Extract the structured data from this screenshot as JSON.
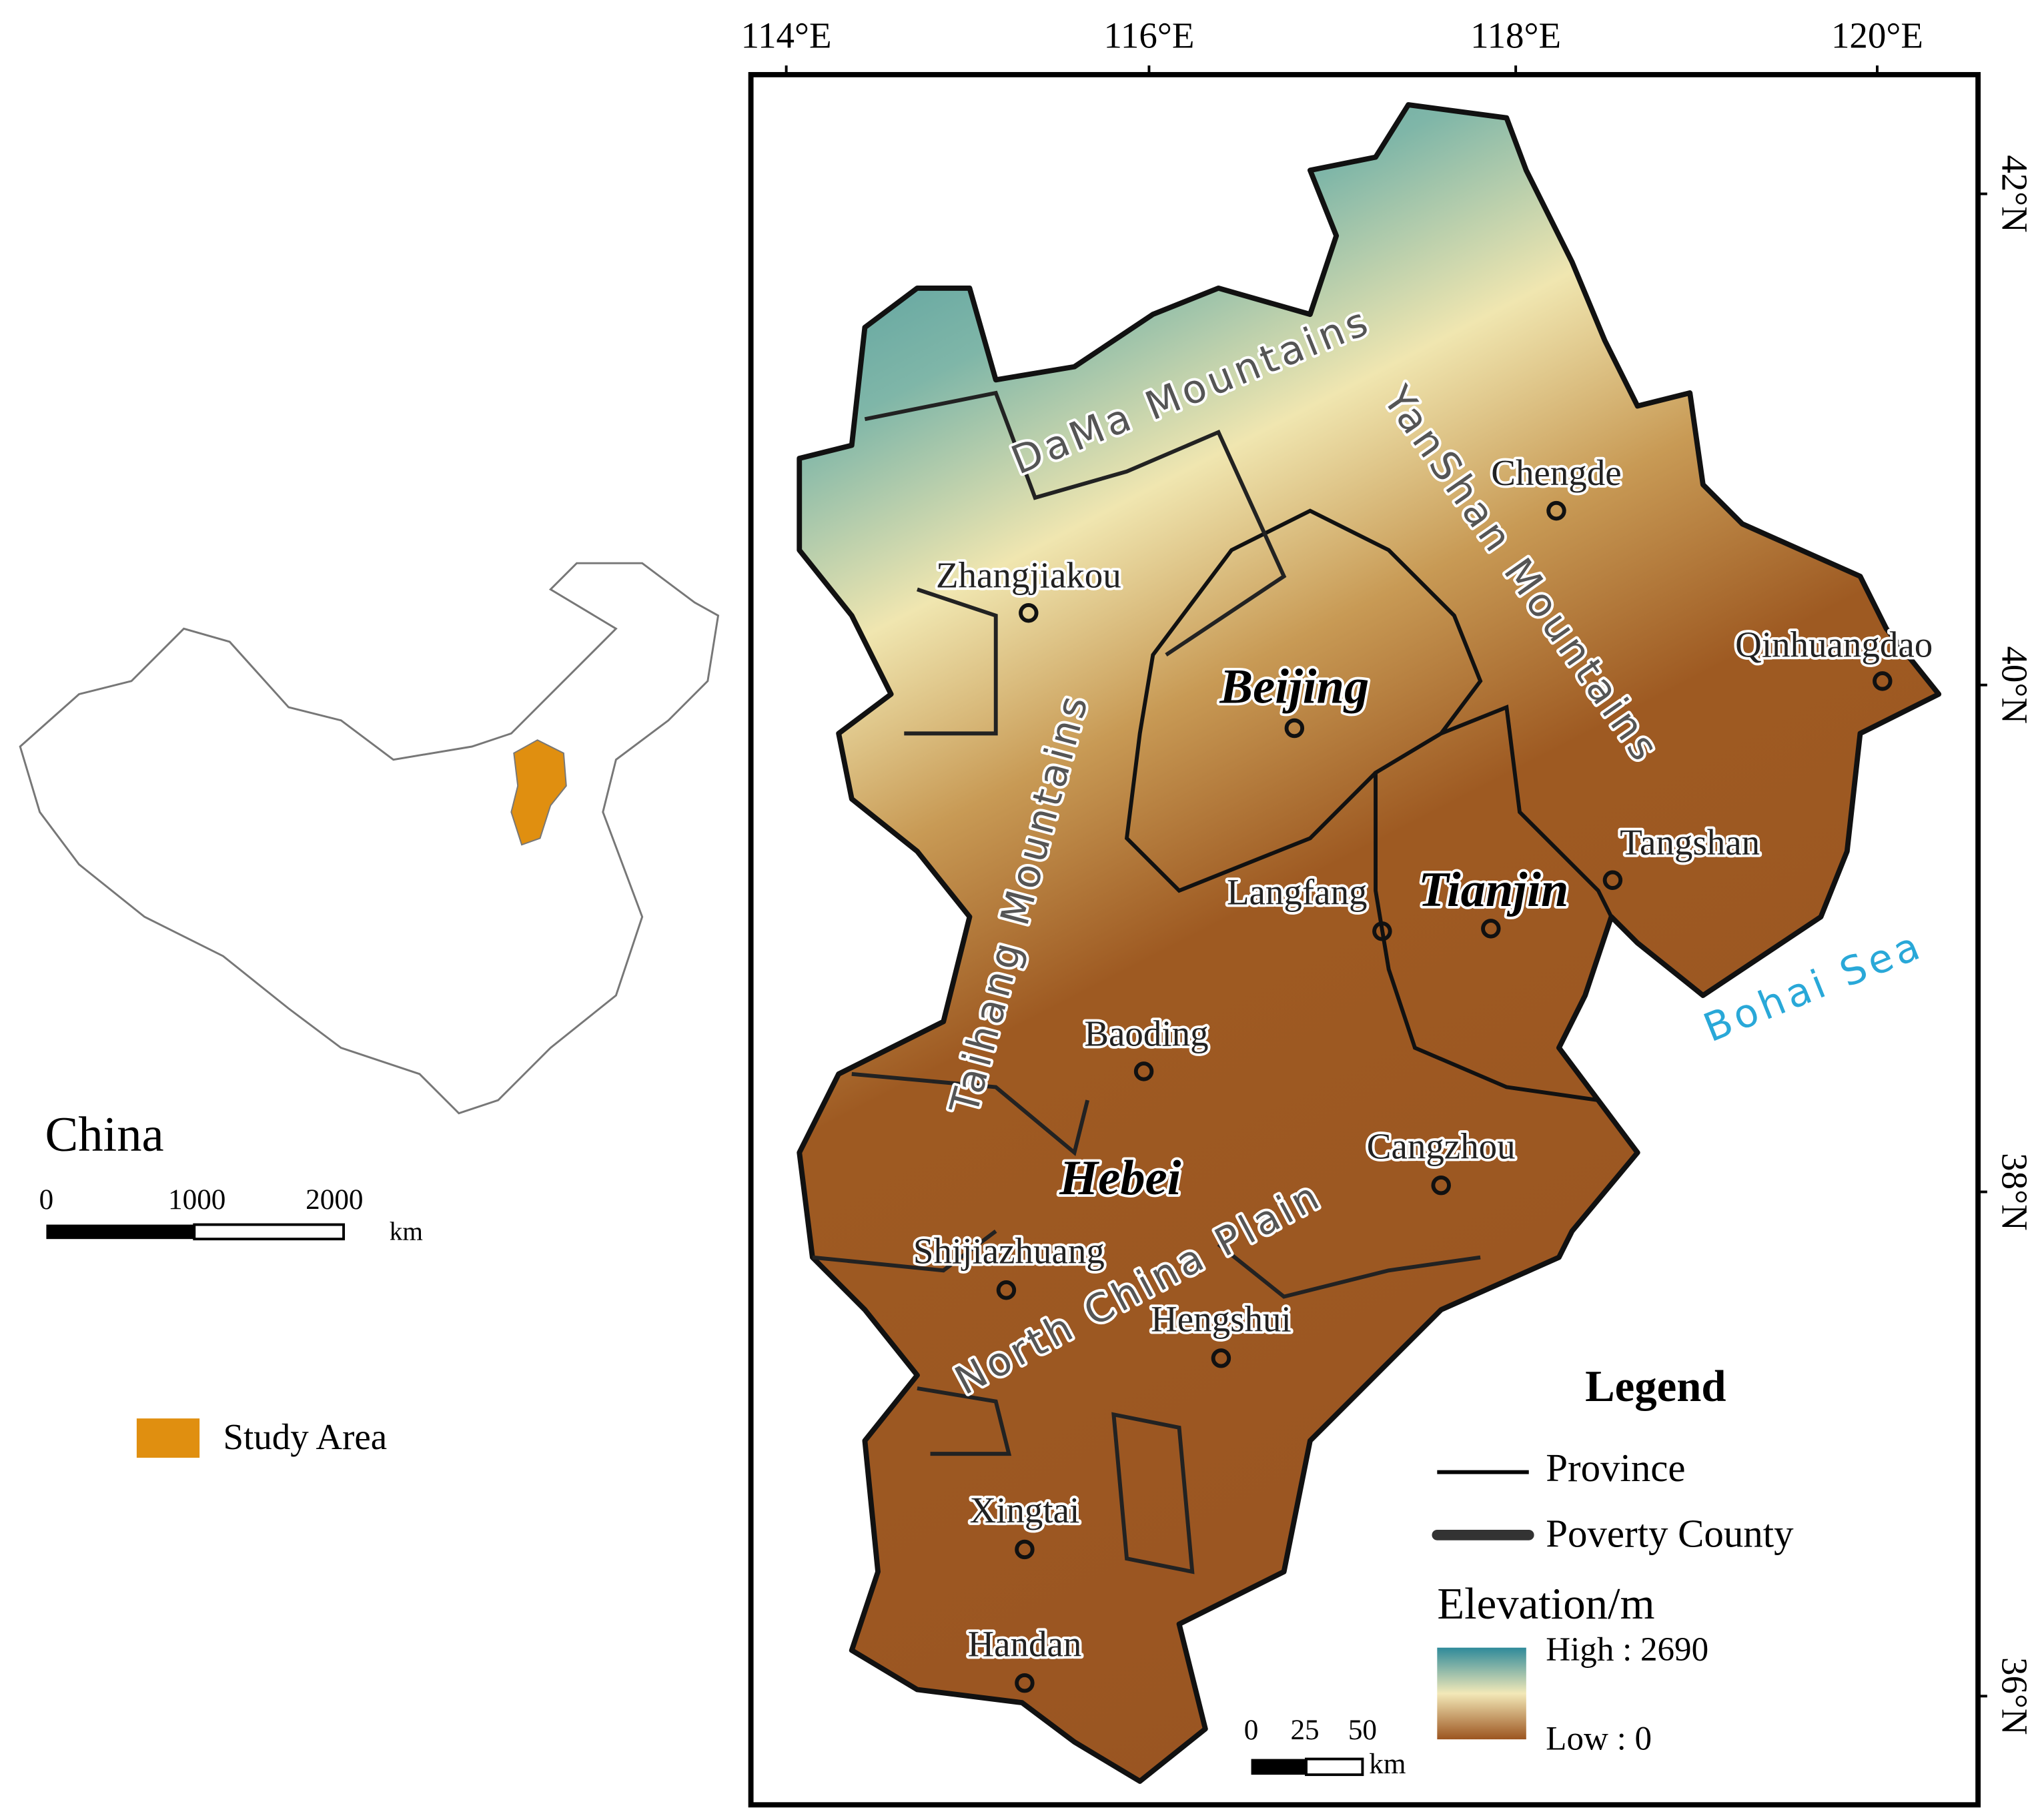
{
  "inset": {
    "title": "China",
    "scale_labels": [
      "0",
      "1000",
      "2000"
    ],
    "scale_unit": "km",
    "legend_label": "Study Area"
  },
  "map": {
    "lon_ticks": [
      "114°E",
      "116°E",
      "118°E",
      "120°E"
    ],
    "lat_ticks": [
      "42°N",
      "40°N",
      "38°N",
      "36°N"
    ],
    "cities": [
      "Zhangjiakou",
      "Chengde",
      "Qinhuangdao",
      "Langfang",
      "Tangshan",
      "Baoding",
      "Cangzhou",
      "Shijiazhuang",
      "Hengshui",
      "Xingtai",
      "Handan"
    ],
    "provinces": [
      "Beijing",
      "Tianjin",
      "Hebei"
    ],
    "features": [
      "DaMa Mountains",
      "YanShan Mountains",
      "Taihang Mountains",
      "North China Plain",
      "Bohai Sea"
    ],
    "legend": {
      "title": "Legend",
      "province": "Province",
      "poverty_county": "Poverty County",
      "elevation_title": "Elevation/m",
      "high": "High : 2690",
      "low": "Low : 0"
    },
    "scale": {
      "labels": [
        "0",
        "25",
        "50"
      ],
      "unit": "km"
    }
  }
}
